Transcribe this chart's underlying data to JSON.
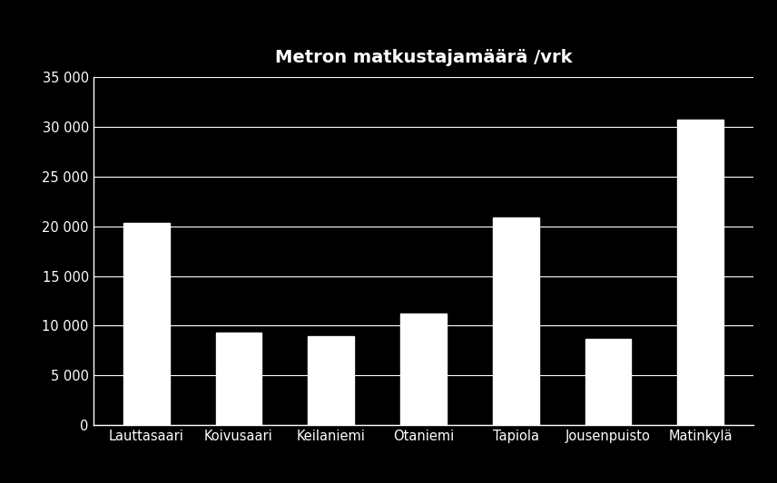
{
  "title": "Metron matkustajamäärä /vrk",
  "categories": [
    "Lauttasaari",
    "Koivusaari",
    "Keilaniemi",
    "Otaniemi",
    "Tapiola",
    "Jousenpuisto",
    "Matinkylä"
  ],
  "values": [
    20300,
    9300,
    8900,
    11200,
    20900,
    8700,
    30700
  ],
  "bar_color": "#ffffff",
  "background_color": "#000000",
  "text_color": "#ffffff",
  "grid_color": "#ffffff",
  "ylim": [
    0,
    35000
  ],
  "yticks": [
    0,
    5000,
    10000,
    15000,
    20000,
    25000,
    30000,
    35000
  ],
  "title_fontsize": 14,
  "tick_fontsize": 10.5
}
